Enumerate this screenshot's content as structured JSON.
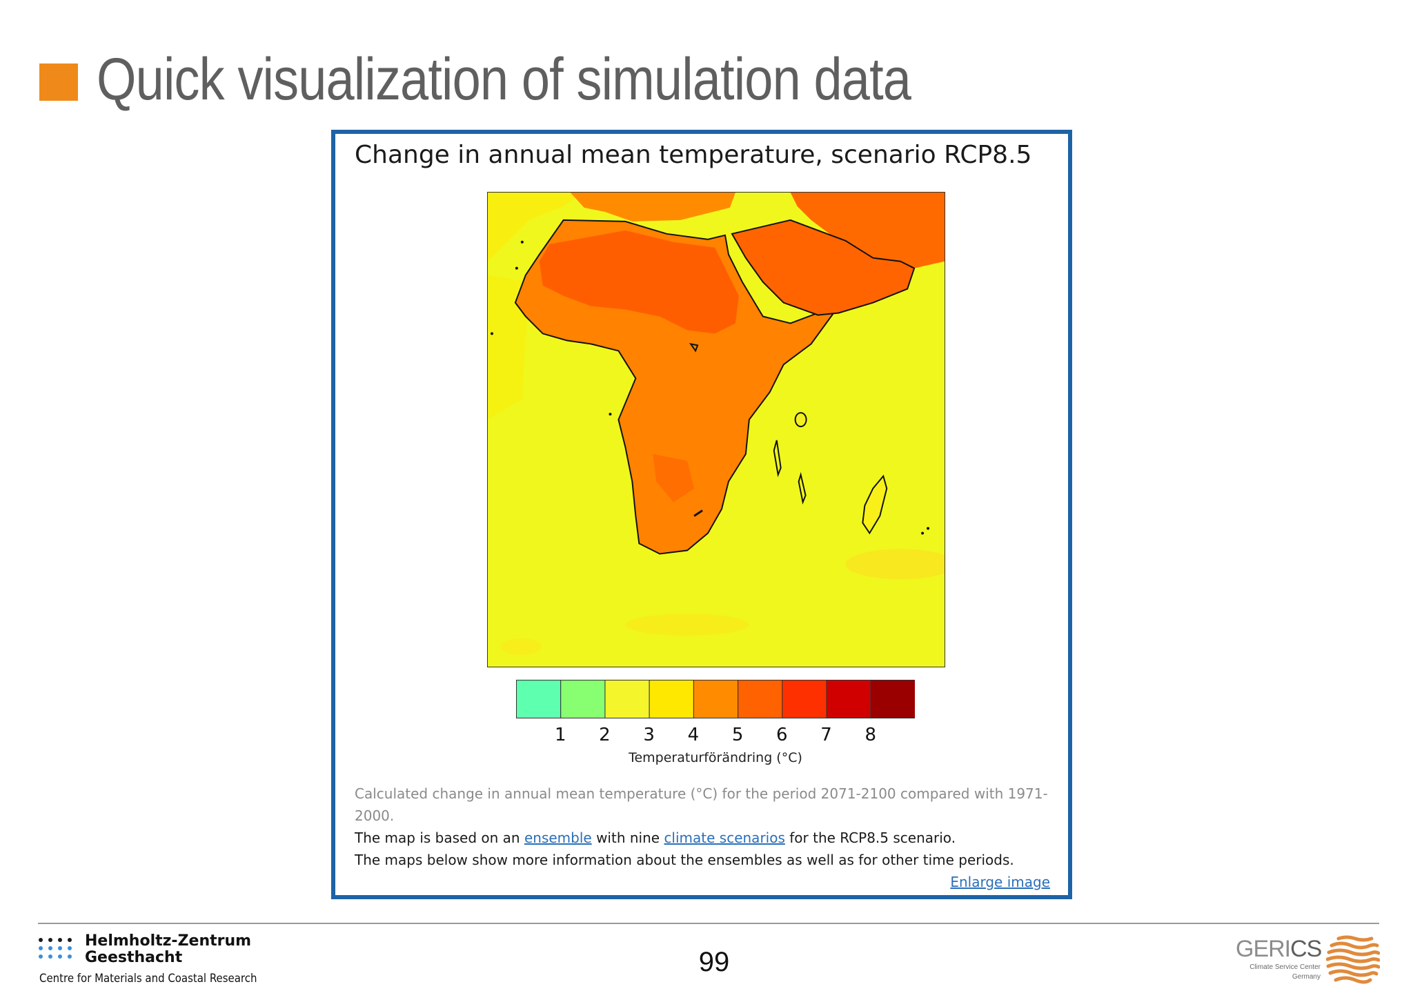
{
  "slide": {
    "title": "Quick visualization of simulation data",
    "page_number": "99",
    "accent_color": "#ef8a1a"
  },
  "figure": {
    "heading": "Change in annual mean temperature, scenario RCP8.5",
    "frame_color": "#1d63a6",
    "legend": {
      "label": "Temperaturförändring (°C)",
      "ticks": [
        "1",
        "2",
        "3",
        "4",
        "5",
        "6",
        "7",
        "8"
      ],
      "bins": [
        {
          "range": [
            0,
            1
          ],
          "color": "#5fffb0"
        },
        {
          "range": [
            1,
            2
          ],
          "color": "#88ff70"
        },
        {
          "range": [
            2,
            3
          ],
          "color": "#f4f52a"
        },
        {
          "range": [
            3,
            4
          ],
          "color": "#ffe800"
        },
        {
          "range": [
            4,
            5
          ],
          "color": "#ff8c00"
        },
        {
          "range": [
            5,
            6
          ],
          "color": "#ff6200"
        },
        {
          "range": [
            6,
            7
          ],
          "color": "#ff3000"
        },
        {
          "range": [
            7,
            8
          ],
          "color": "#d00000"
        },
        {
          "range": [
            8,
            9
          ],
          "color": "#9a0000"
        }
      ]
    },
    "caption_line_1": "Calculated change in annual mean temperature (°C) for the period 2071-2100 compared with 1971-2000.",
    "caption_line_2": {
      "part_1": "The map is based on an ",
      "link_1": "ensemble",
      "part_2": " with nine ",
      "link_2": "climate scenarios",
      "part_3": " for the RCP8.5 scenario."
    },
    "caption_line_3": "The maps below show more information about the ensembles as well as for other time periods.",
    "enlarge_link": "Enlarge image",
    "link_color": "#2a6fb8"
  },
  "footer": {
    "hzg_name_1": "Helmholtz-Zentrum",
    "hzg_name_2": "Geesthacht",
    "hzg_subtitle": "Centre for Materials and Coastal Research",
    "gerics_word_1": "GERI",
    "gerics_word_2": "CS",
    "gerics_sub_1": "Climate Service Center",
    "gerics_sub_2": "Germany"
  }
}
